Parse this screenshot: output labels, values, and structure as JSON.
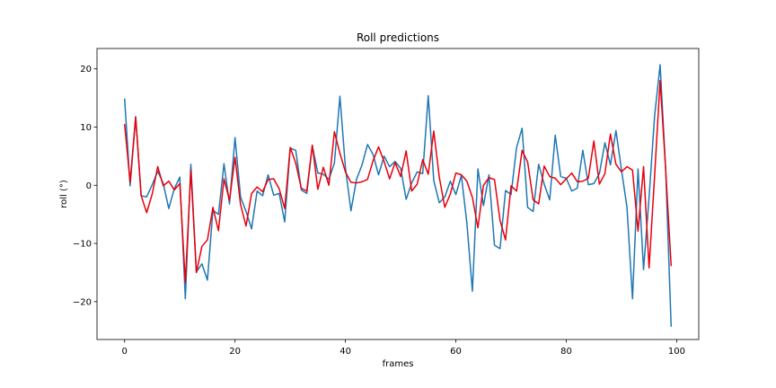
{
  "chart_data": {
    "type": "line",
    "title": "Roll predictions",
    "xlabel": "frames",
    "ylabel": "roll (°)",
    "xlim": [
      -5,
      104
    ],
    "ylim": [
      -26.5,
      23.5
    ],
    "xticks": [
      0,
      20,
      40,
      60,
      80,
      100
    ],
    "yticks": [
      -20,
      -10,
      0,
      10,
      20
    ],
    "grid": false,
    "legend": "none",
    "x": [
      0,
      1,
      2,
      3,
      4,
      5,
      6,
      7,
      8,
      9,
      10,
      11,
      12,
      13,
      14,
      15,
      16,
      17,
      18,
      19,
      20,
      21,
      22,
      23,
      24,
      25,
      26,
      27,
      28,
      29,
      30,
      31,
      32,
      33,
      34,
      35,
      36,
      37,
      38,
      39,
      40,
      41,
      42,
      43,
      44,
      45,
      46,
      47,
      48,
      49,
      50,
      51,
      52,
      53,
      54,
      55,
      56,
      57,
      58,
      59,
      60,
      61,
      62,
      63,
      64,
      65,
      66,
      67,
      68,
      69,
      70,
      71,
      72,
      73,
      74,
      75,
      76,
      77,
      78,
      79,
      80,
      81,
      82,
      83,
      84,
      85,
      86,
      87,
      88,
      89,
      90,
      91,
      92,
      93,
      94,
      95,
      96,
      97,
      98,
      99
    ],
    "series": [
      {
        "color": "#1f77b4",
        "values": [
          14.9,
          -0.1,
          11.8,
          -1.8,
          -2.0,
          0.1,
          2.4,
          0.3,
          -4.0,
          -0.6,
          1.4,
          -19.5,
          3.6,
          -14.9,
          -13.5,
          -16.3,
          -4.3,
          -5.0,
          3.7,
          -3.2,
          8.2,
          -2.0,
          -4.5,
          -7.5,
          -1.0,
          -1.8,
          1.8,
          -1.7,
          -1.4,
          -6.3,
          6.4,
          6.0,
          -0.8,
          -1.4,
          6.8,
          2.1,
          1.9,
          1.0,
          3.8,
          15.3,
          3.0,
          -4.4,
          1.0,
          3.5,
          7.0,
          5.3,
          1.8,
          5.0,
          3.2,
          4.1,
          2.9,
          -2.4,
          0.4,
          2.3,
          2.0,
          15.4,
          0.8,
          -3.0,
          -2.0,
          0.7,
          -1.6,
          1.7,
          -6.5,
          -18.2,
          2.8,
          -3.5,
          1.8,
          -10.3,
          -10.9,
          -0.9,
          -1.6,
          6.5,
          9.8,
          -3.8,
          -4.5,
          3.6,
          0.2,
          -2.5,
          8.6,
          1.5,
          1.2,
          -1.0,
          -0.5,
          6.0,
          0.1,
          0.3,
          2.0,
          7.3,
          3.5,
          9.4,
          2.7,
          -3.8,
          -19.5,
          2.8,
          -14.5,
          -2.1,
          11.9,
          20.7,
          2.9,
          -24.3
        ]
      },
      {
        "color": "#e8000b",
        "values": [
          10.5,
          0.5,
          11.7,
          -1.8,
          -4.7,
          -1.5,
          3.2,
          -0.1,
          0.7,
          -0.8,
          0.3,
          -16.7,
          2.6,
          -15.0,
          -10.5,
          -9.4,
          -3.8,
          -7.8,
          1.1,
          -2.6,
          4.8,
          -3.3,
          -7.0,
          -1.4,
          -0.3,
          -1.1,
          1.0,
          1.1,
          -0.6,
          -4.0,
          6.5,
          3.8,
          -0.5,
          -1.0,
          6.9,
          -0.7,
          3.1,
          0.0,
          9.2,
          5.5,
          2.3,
          0.5,
          0.4,
          0.6,
          1.0,
          4.2,
          6.6,
          4.1,
          1.1,
          3.9,
          1.5,
          5.9,
          -1.0,
          0.2,
          4.4,
          1.9,
          9.3,
          1.4,
          -3.8,
          -1.5,
          2.1,
          1.8,
          0.7,
          -2.1,
          -7.3,
          0.0,
          1.3,
          1.0,
          -6.0,
          -9.4,
          -0.1,
          -1.0,
          6.0,
          4.0,
          -2.5,
          -3.2,
          3.3,
          1.5,
          1.2,
          0.1,
          1.1,
          2.1,
          0.6,
          0.7,
          1.2,
          7.6,
          0.2,
          2.0,
          8.8,
          3.6,
          2.3,
          3.2,
          2.6,
          -7.9,
          3.2,
          -14.2,
          1.6,
          18.0,
          2.8,
          -13.9
        ]
      }
    ]
  }
}
